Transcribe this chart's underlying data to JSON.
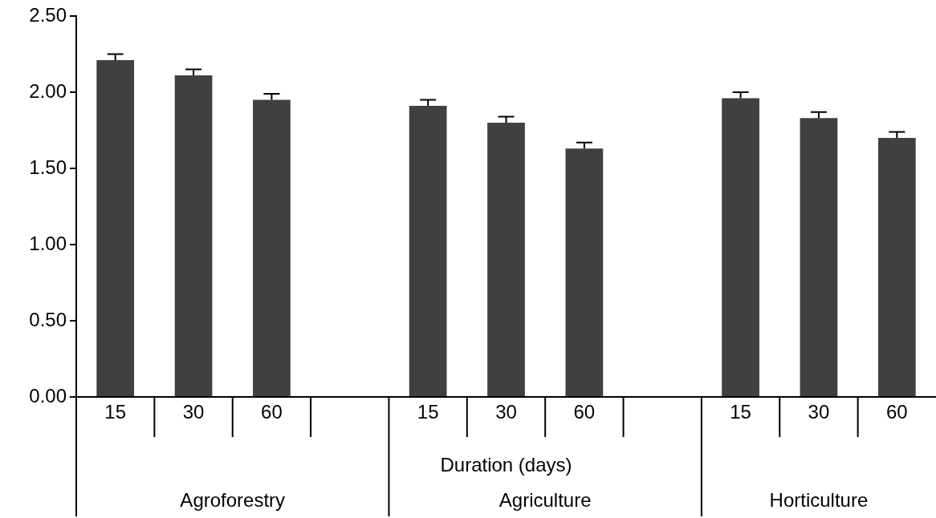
{
  "chart_data": {
    "type": "bar",
    "xlabel": "Duration (days)",
    "categories": [
      "15",
      "30",
      "60",
      null,
      "15",
      "30",
      "60",
      null,
      "15",
      "30",
      "60"
    ],
    "values": [
      2.21,
      2.11,
      1.95,
      null,
      1.91,
      1.8,
      1.63,
      null,
      1.96,
      1.83,
      1.7
    ],
    "errors": [
      0.04,
      0.04,
      0.04,
      null,
      0.04,
      0.04,
      0.04,
      null,
      0.04,
      0.04,
      0.04
    ],
    "color": "#404040",
    "annotations": [
      "Agroforestry",
      "Agriculture",
      "Horticulture"
    ],
    "ylim": [
      0,
      2.5
    ],
    "yticks": [
      {
        "value": 0,
        "label": "0.00"
      },
      {
        "value": 0.5,
        "label": "0.50"
      },
      {
        "value": 1,
        "label": "1.00"
      },
      {
        "value": 1.5,
        "label": "1.50"
      },
      {
        "value": 2,
        "label": "2.00"
      },
      {
        "value": 2.5,
        "label": "2.50"
      }
    ],
    "grid": false,
    "legend": false
  }
}
